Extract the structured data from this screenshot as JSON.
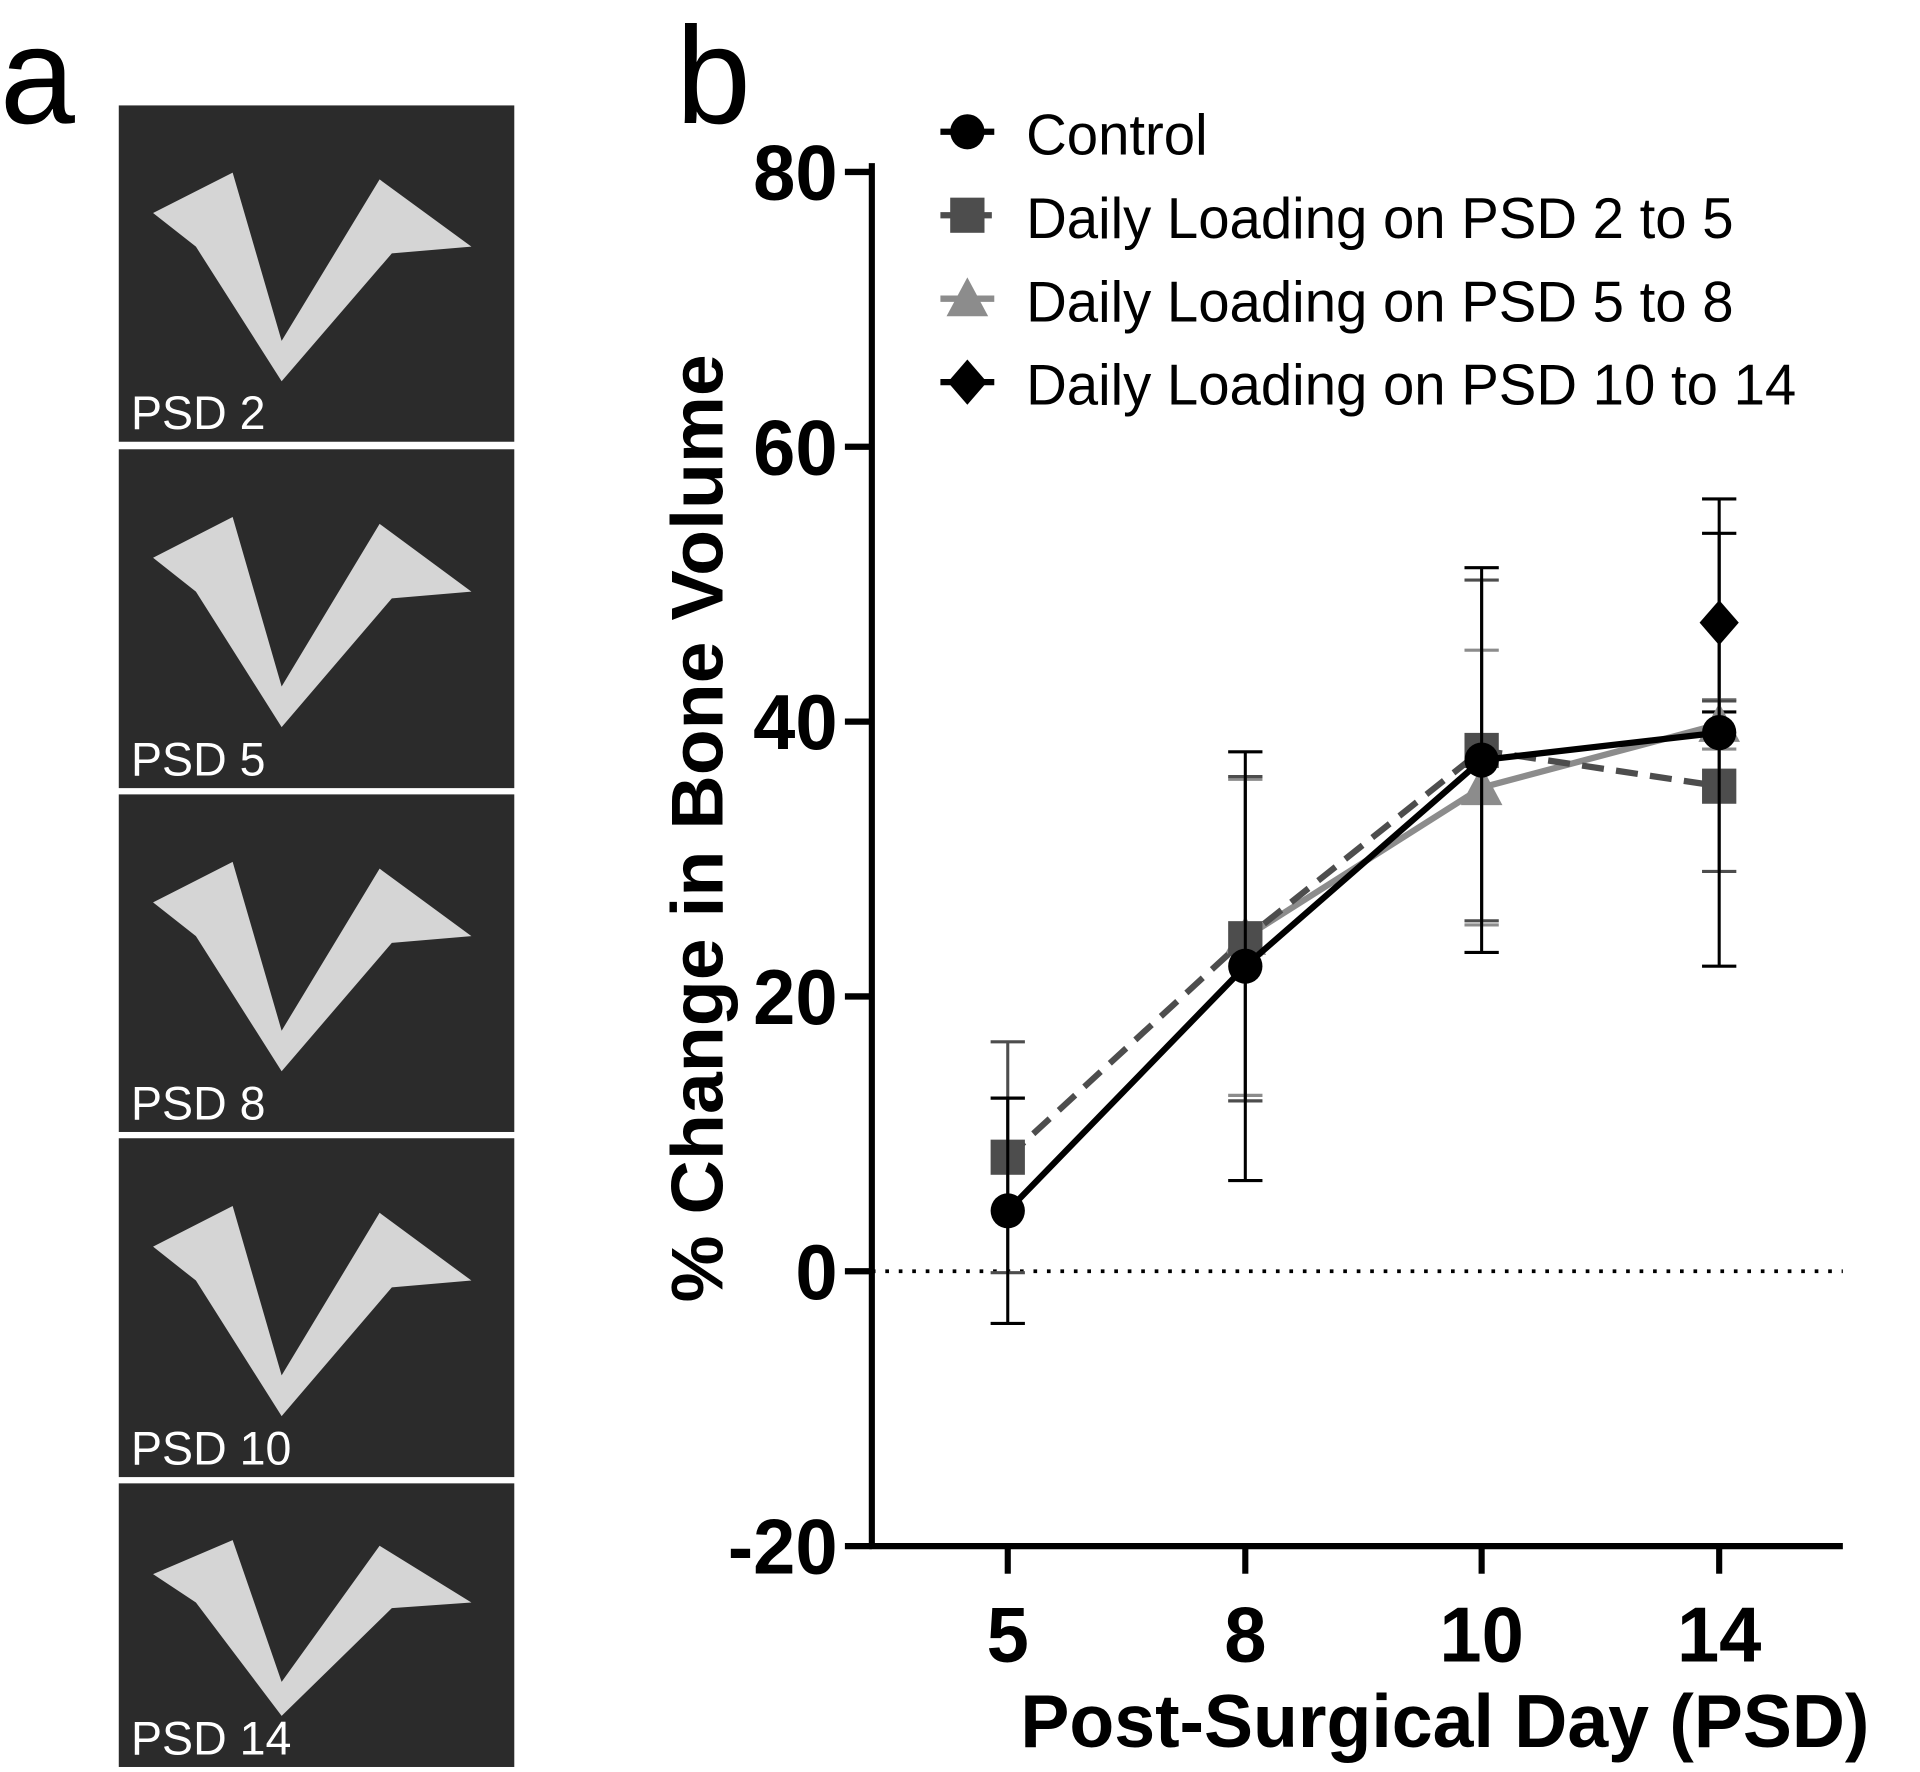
{
  "panel_labels": [
    "a",
    "b"
  ],
  "images": [
    {
      "label": "PSD 2"
    },
    {
      "label": "PSD 5"
    },
    {
      "label": "PSD 8"
    },
    {
      "label": "PSD 10"
    },
    {
      "label": "PSD 14"
    }
  ],
  "chart_data": {
    "type": "line",
    "xlabel": "Post-Surgical Day (PSD)",
    "ylabel": "% Change in Bone Volume",
    "categories": [
      "5",
      "8",
      "10",
      "14"
    ],
    "ylim": [
      -20,
      80
    ],
    "yticks": [
      -20,
      0,
      20,
      40,
      60,
      80
    ],
    "hline": 0,
    "series": [
      {
        "name": "Control",
        "color": "#000000",
        "marker": "circle",
        "dashed": false,
        "values": [
          4.4,
          22.2,
          37.2,
          39.2
        ],
        "errors": [
          8.2,
          15.6,
          14,
          17
        ]
      },
      {
        "name": "Daily Loading on PSD 2 to 5",
        "color": "#4d4d4d",
        "marker": "square",
        "dashed": true,
        "values": [
          8.3,
          24.2,
          37.9,
          35.3
        ],
        "errors": [
          8.4,
          11.8,
          12.4,
          6.2
        ]
      },
      {
        "name": "Daily Loading on PSD 5 to 8",
        "color": "#8c8c8c",
        "marker": "triangle",
        "dashed": false,
        "values": [
          null,
          24.3,
          35.2,
          39.8
        ],
        "errors": [
          null,
          11.5,
          10,
          1.8
        ]
      },
      {
        "name": "Daily Loading on PSD 10 to 14",
        "color": "#000000",
        "marker": "diamond",
        "dashed": false,
        "values": [
          null,
          null,
          null,
          47.2
        ],
        "errors": [
          null,
          null,
          null,
          6.5
        ]
      }
    ]
  }
}
